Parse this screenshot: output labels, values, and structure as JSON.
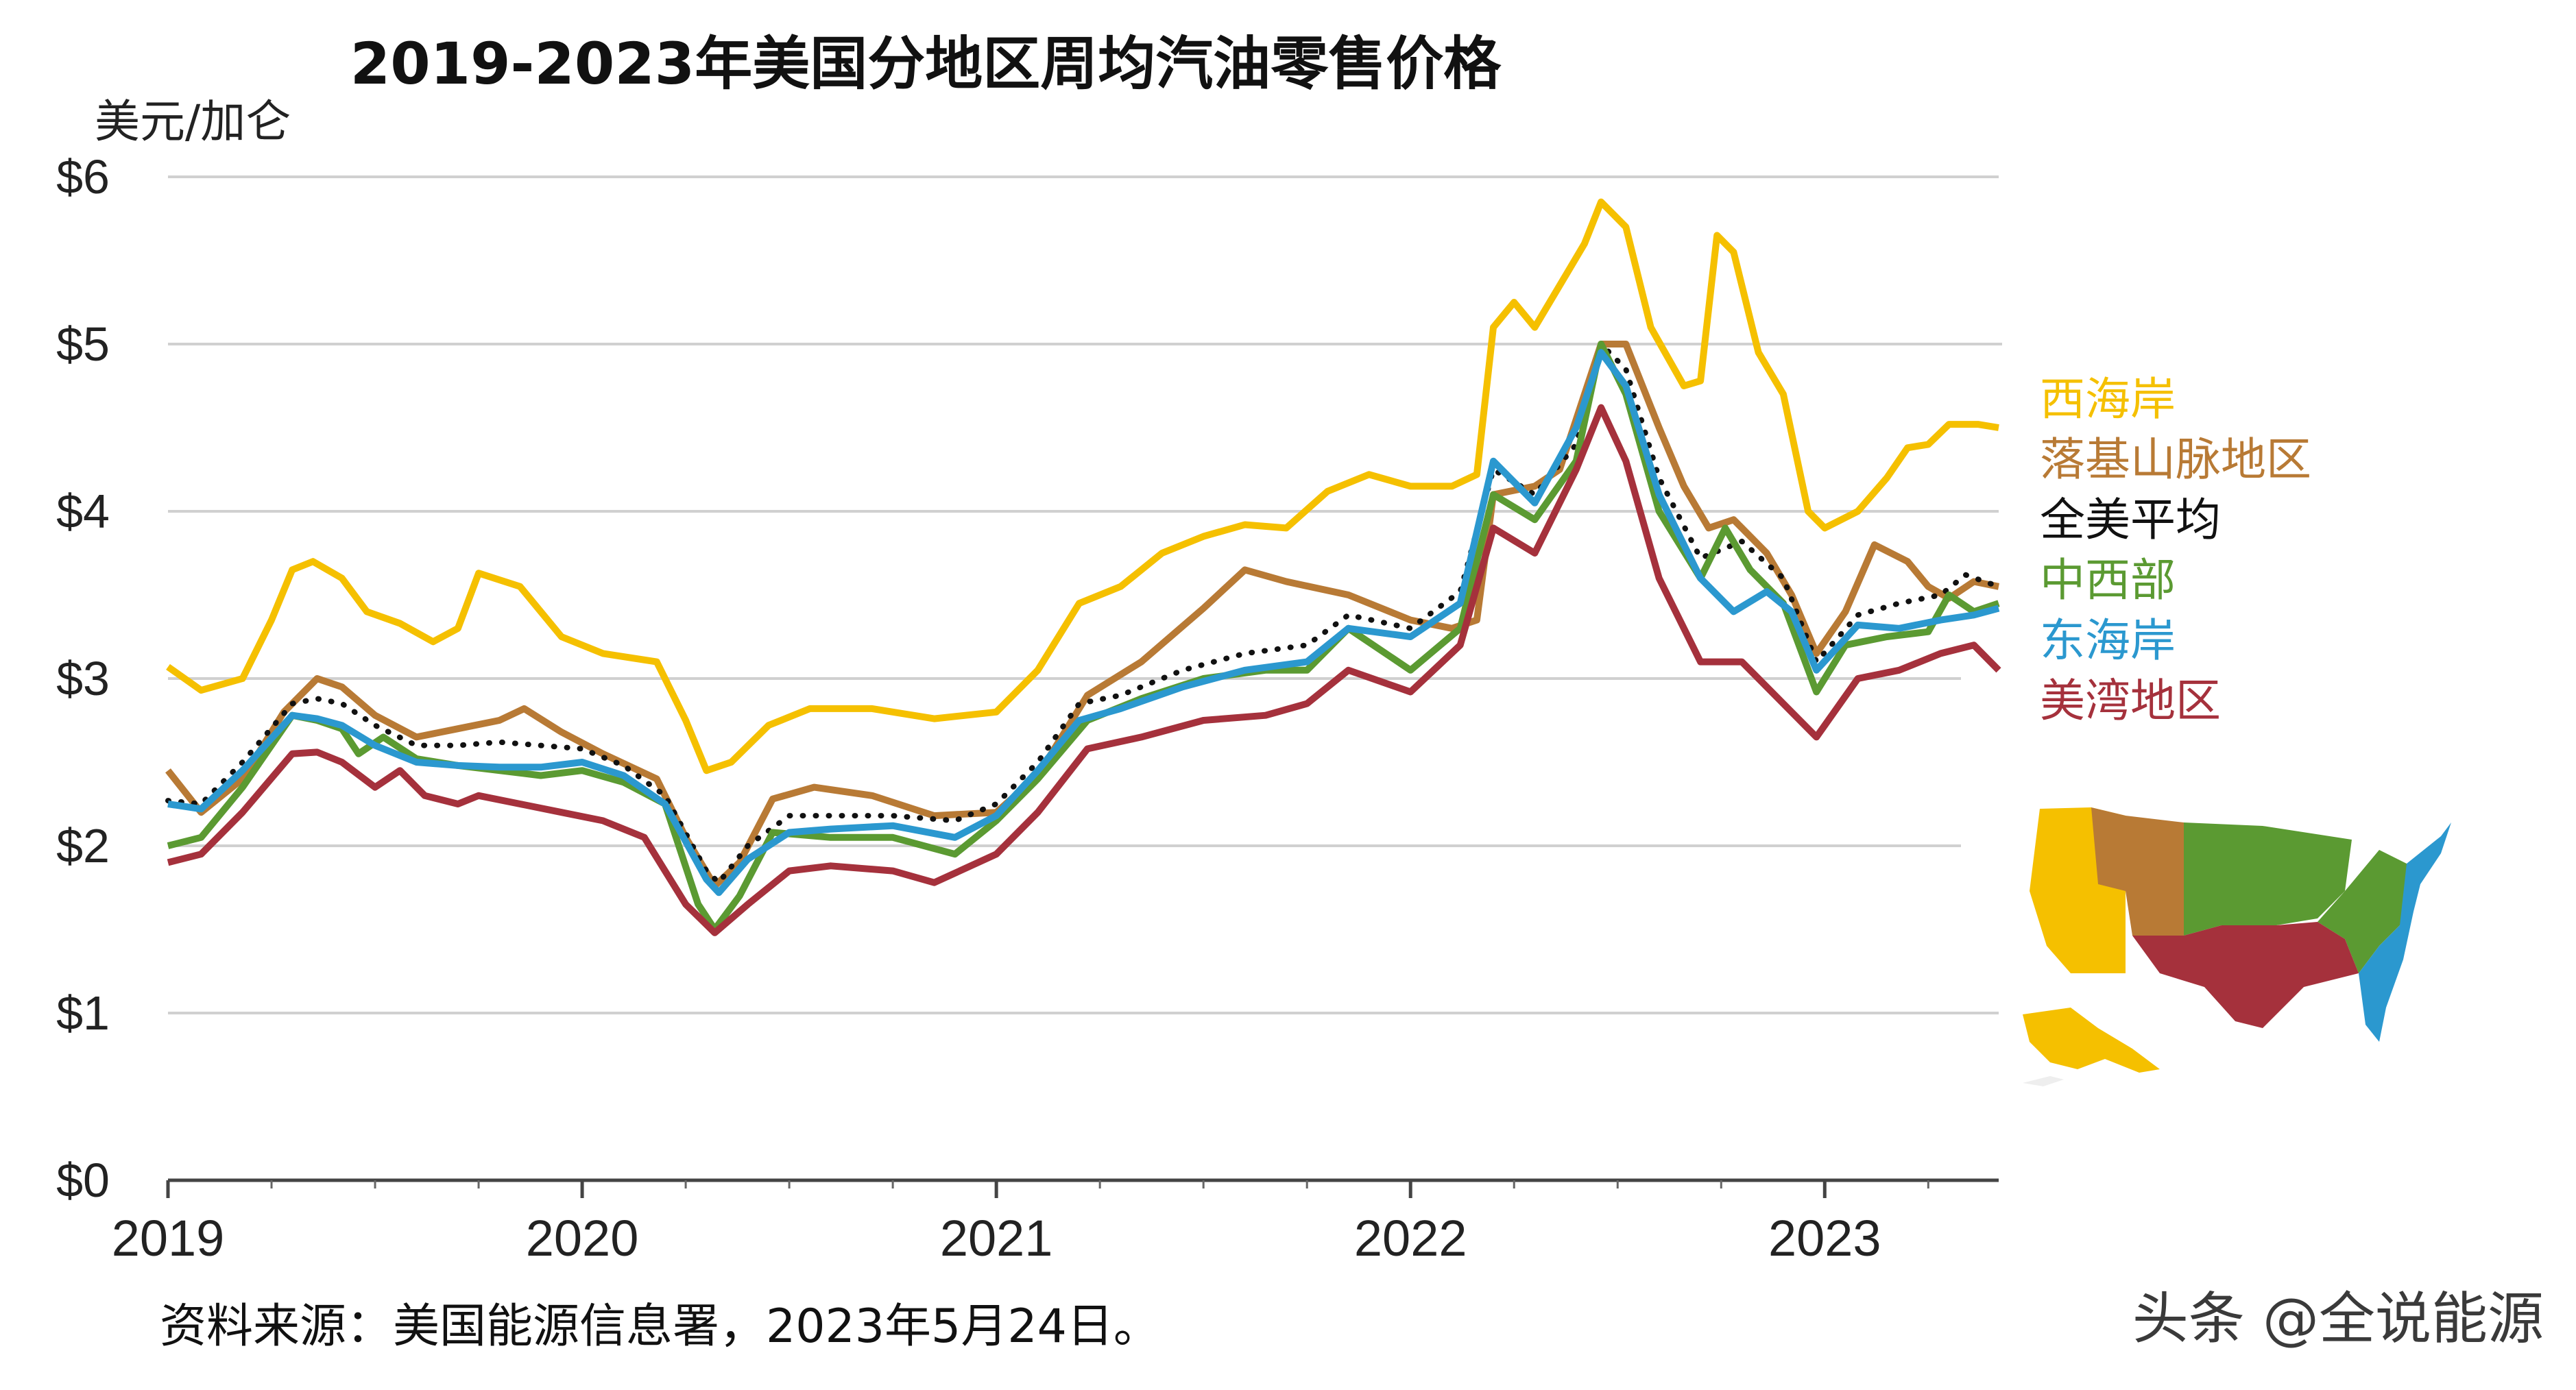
{
  "chart_data": {
    "type": "line",
    "title": "2019-2023年美国分地区周均汽油零售价格",
    "ylabel": "美元/加仑",
    "xlabel": "",
    "ylim": [
      0,
      6
    ],
    "xlim": [
      2019.0,
      2023.42
    ],
    "yticks": [
      "$0",
      "$1",
      "$2",
      "$3",
      "$4",
      "$5",
      "$6"
    ],
    "xticks": [
      "2019",
      "2020",
      "2021",
      "2022",
      "2023"
    ],
    "grid": "horizontal",
    "legend_placement": "right",
    "series": [
      {
        "name": "西海岸",
        "color": "#f5c000",
        "dashed": false,
        "points": [
          [
            2019.0,
            3.07
          ],
          [
            2019.08,
            2.93
          ],
          [
            2019.18,
            3.0
          ],
          [
            2019.25,
            3.35
          ],
          [
            2019.3,
            3.65
          ],
          [
            2019.35,
            3.7
          ],
          [
            2019.42,
            3.6
          ],
          [
            2019.48,
            3.4
          ],
          [
            2019.56,
            3.33
          ],
          [
            2019.64,
            3.22
          ],
          [
            2019.7,
            3.3
          ],
          [
            2019.75,
            3.63
          ],
          [
            2019.85,
            3.55
          ],
          [
            2019.95,
            3.25
          ],
          [
            2020.05,
            3.15
          ],
          [
            2020.18,
            3.1
          ],
          [
            2020.25,
            2.75
          ],
          [
            2020.3,
            2.45
          ],
          [
            2020.36,
            2.5
          ],
          [
            2020.45,
            2.72
          ],
          [
            2020.55,
            2.82
          ],
          [
            2020.7,
            2.82
          ],
          [
            2020.85,
            2.76
          ],
          [
            2021.0,
            2.8
          ],
          [
            2021.1,
            3.05
          ],
          [
            2021.2,
            3.45
          ],
          [
            2021.3,
            3.55
          ],
          [
            2021.4,
            3.75
          ],
          [
            2021.5,
            3.85
          ],
          [
            2021.6,
            3.92
          ],
          [
            2021.7,
            3.9
          ],
          [
            2021.8,
            4.12
          ],
          [
            2021.9,
            4.22
          ],
          [
            2022.0,
            4.15
          ],
          [
            2022.1,
            4.15
          ],
          [
            2022.16,
            4.22
          ],
          [
            2022.2,
            5.1
          ],
          [
            2022.25,
            5.25
          ],
          [
            2022.3,
            5.1
          ],
          [
            2022.36,
            5.35
          ],
          [
            2022.42,
            5.6
          ],
          [
            2022.46,
            5.85
          ],
          [
            2022.52,
            5.7
          ],
          [
            2022.58,
            5.1
          ],
          [
            2022.66,
            4.75
          ],
          [
            2022.7,
            4.78
          ],
          [
            2022.74,
            5.65
          ],
          [
            2022.78,
            5.55
          ],
          [
            2022.84,
            4.95
          ],
          [
            2022.9,
            4.7
          ],
          [
            2022.96,
            4.0
          ],
          [
            2023.0,
            3.9
          ],
          [
            2023.08,
            4.0
          ],
          [
            2023.15,
            4.2
          ],
          [
            2023.2,
            4.38
          ],
          [
            2023.25,
            4.4
          ],
          [
            2023.3,
            4.52
          ],
          [
            2023.37,
            4.52
          ],
          [
            2023.42,
            4.5
          ]
        ]
      },
      {
        "name": "落基山脉地区",
        "color": "#b87a35",
        "dashed": false,
        "points": [
          [
            2019.0,
            2.45
          ],
          [
            2019.08,
            2.2
          ],
          [
            2019.18,
            2.4
          ],
          [
            2019.28,
            2.8
          ],
          [
            2019.36,
            3.0
          ],
          [
            2019.42,
            2.95
          ],
          [
            2019.5,
            2.78
          ],
          [
            2019.6,
            2.65
          ],
          [
            2019.7,
            2.7
          ],
          [
            2019.8,
            2.75
          ],
          [
            2019.86,
            2.82
          ],
          [
            2019.95,
            2.68
          ],
          [
            2020.05,
            2.55
          ],
          [
            2020.18,
            2.4
          ],
          [
            2020.25,
            2.05
          ],
          [
            2020.32,
            1.76
          ],
          [
            2020.38,
            1.9
          ],
          [
            2020.46,
            2.28
          ],
          [
            2020.56,
            2.35
          ],
          [
            2020.7,
            2.3
          ],
          [
            2020.85,
            2.18
          ],
          [
            2021.0,
            2.2
          ],
          [
            2021.1,
            2.42
          ],
          [
            2021.22,
            2.9
          ],
          [
            2021.35,
            3.1
          ],
          [
            2021.5,
            3.42
          ],
          [
            2021.6,
            3.65
          ],
          [
            2021.7,
            3.58
          ],
          [
            2021.85,
            3.5
          ],
          [
            2022.0,
            3.35
          ],
          [
            2022.1,
            3.3
          ],
          [
            2022.16,
            3.35
          ],
          [
            2022.2,
            4.1
          ],
          [
            2022.3,
            4.15
          ],
          [
            2022.36,
            4.25
          ],
          [
            2022.42,
            4.7
          ],
          [
            2022.46,
            5.0
          ],
          [
            2022.52,
            5.0
          ],
          [
            2022.6,
            4.5
          ],
          [
            2022.66,
            4.15
          ],
          [
            2022.72,
            3.9
          ],
          [
            2022.78,
            3.95
          ],
          [
            2022.86,
            3.75
          ],
          [
            2022.92,
            3.5
          ],
          [
            2022.98,
            3.15
          ],
          [
            2023.05,
            3.4
          ],
          [
            2023.12,
            3.8
          ],
          [
            2023.2,
            3.7
          ],
          [
            2023.25,
            3.55
          ],
          [
            2023.3,
            3.48
          ],
          [
            2023.36,
            3.58
          ],
          [
            2023.42,
            3.55
          ]
        ]
      },
      {
        "name": "全美平均",
        "color": "#111111",
        "dashed": true,
        "points": [
          [
            2019.0,
            2.27
          ],
          [
            2019.08,
            2.25
          ],
          [
            2019.18,
            2.5
          ],
          [
            2019.3,
            2.85
          ],
          [
            2019.36,
            2.88
          ],
          [
            2019.42,
            2.85
          ],
          [
            2019.5,
            2.72
          ],
          [
            2019.6,
            2.6
          ],
          [
            2019.7,
            2.6
          ],
          [
            2019.8,
            2.62
          ],
          [
            2019.9,
            2.6
          ],
          [
            2020.0,
            2.58
          ],
          [
            2020.1,
            2.48
          ],
          [
            2020.2,
            2.3
          ],
          [
            2020.3,
            1.85
          ],
          [
            2020.33,
            1.78
          ],
          [
            2020.4,
            2.0
          ],
          [
            2020.5,
            2.18
          ],
          [
            2020.6,
            2.18
          ],
          [
            2020.75,
            2.18
          ],
          [
            2020.9,
            2.15
          ],
          [
            2021.0,
            2.25
          ],
          [
            2021.1,
            2.5
          ],
          [
            2021.2,
            2.85
          ],
          [
            2021.3,
            2.9
          ],
          [
            2021.45,
            3.05
          ],
          [
            2021.6,
            3.15
          ],
          [
            2021.75,
            3.2
          ],
          [
            2021.85,
            3.38
          ],
          [
            2022.0,
            3.3
          ],
          [
            2022.12,
            3.52
          ],
          [
            2022.2,
            4.25
          ],
          [
            2022.3,
            4.1
          ],
          [
            2022.4,
            4.4
          ],
          [
            2022.46,
            5.0
          ],
          [
            2022.52,
            4.85
          ],
          [
            2022.6,
            4.2
          ],
          [
            2022.7,
            3.72
          ],
          [
            2022.8,
            3.82
          ],
          [
            2022.9,
            3.6
          ],
          [
            2022.98,
            3.1
          ],
          [
            2023.08,
            3.38
          ],
          [
            2023.18,
            3.45
          ],
          [
            2023.28,
            3.5
          ],
          [
            2023.34,
            3.62
          ],
          [
            2023.42,
            3.55
          ]
        ]
      },
      {
        "name": "中西部",
        "color": "#5b9a32",
        "dashed": false,
        "points": [
          [
            2019.0,
            2.0
          ],
          [
            2019.08,
            2.05
          ],
          [
            2019.18,
            2.35
          ],
          [
            2019.3,
            2.78
          ],
          [
            2019.36,
            2.75
          ],
          [
            2019.42,
            2.7
          ],
          [
            2019.46,
            2.55
          ],
          [
            2019.52,
            2.65
          ],
          [
            2019.6,
            2.52
          ],
          [
            2019.7,
            2.48
          ],
          [
            2019.8,
            2.45
          ],
          [
            2019.9,
            2.42
          ],
          [
            2020.0,
            2.45
          ],
          [
            2020.1,
            2.38
          ],
          [
            2020.2,
            2.25
          ],
          [
            2020.28,
            1.65
          ],
          [
            2020.32,
            1.5
          ],
          [
            2020.38,
            1.7
          ],
          [
            2020.46,
            2.08
          ],
          [
            2020.6,
            2.05
          ],
          [
            2020.75,
            2.05
          ],
          [
            2020.9,
            1.95
          ],
          [
            2021.0,
            2.15
          ],
          [
            2021.1,
            2.4
          ],
          [
            2021.22,
            2.75
          ],
          [
            2021.35,
            2.88
          ],
          [
            2021.5,
            3.0
          ],
          [
            2021.65,
            3.05
          ],
          [
            2021.75,
            3.05
          ],
          [
            2021.85,
            3.3
          ],
          [
            2022.0,
            3.05
          ],
          [
            2022.12,
            3.3
          ],
          [
            2022.2,
            4.1
          ],
          [
            2022.3,
            3.95
          ],
          [
            2022.4,
            4.3
          ],
          [
            2022.46,
            5.0
          ],
          [
            2022.52,
            4.7
          ],
          [
            2022.6,
            4.0
          ],
          [
            2022.7,
            3.6
          ],
          [
            2022.76,
            3.9
          ],
          [
            2022.82,
            3.65
          ],
          [
            2022.9,
            3.45
          ],
          [
            2022.98,
            2.92
          ],
          [
            2023.05,
            3.2
          ],
          [
            2023.15,
            3.25
          ],
          [
            2023.25,
            3.28
          ],
          [
            2023.3,
            3.5
          ],
          [
            2023.36,
            3.4
          ],
          [
            2023.42,
            3.45
          ]
        ]
      },
      {
        "name": "东海岸",
        "color": "#2b98cf",
        "dashed": false,
        "points": [
          [
            2019.0,
            2.25
          ],
          [
            2019.08,
            2.22
          ],
          [
            2019.18,
            2.45
          ],
          [
            2019.3,
            2.78
          ],
          [
            2019.36,
            2.76
          ],
          [
            2019.42,
            2.72
          ],
          [
            2019.5,
            2.6
          ],
          [
            2019.6,
            2.5
          ],
          [
            2019.7,
            2.48
          ],
          [
            2019.8,
            2.47
          ],
          [
            2019.9,
            2.47
          ],
          [
            2020.0,
            2.5
          ],
          [
            2020.1,
            2.42
          ],
          [
            2020.2,
            2.25
          ],
          [
            2020.3,
            1.8
          ],
          [
            2020.33,
            1.72
          ],
          [
            2020.4,
            1.92
          ],
          [
            2020.5,
            2.08
          ],
          [
            2020.6,
            2.1
          ],
          [
            2020.75,
            2.12
          ],
          [
            2020.9,
            2.05
          ],
          [
            2021.0,
            2.18
          ],
          [
            2021.1,
            2.45
          ],
          [
            2021.2,
            2.75
          ],
          [
            2021.3,
            2.82
          ],
          [
            2021.45,
            2.95
          ],
          [
            2021.6,
            3.05
          ],
          [
            2021.75,
            3.1
          ],
          [
            2021.85,
            3.3
          ],
          [
            2022.0,
            3.25
          ],
          [
            2022.12,
            3.45
          ],
          [
            2022.2,
            4.3
          ],
          [
            2022.3,
            4.05
          ],
          [
            2022.4,
            4.5
          ],
          [
            2022.46,
            4.95
          ],
          [
            2022.52,
            4.75
          ],
          [
            2022.6,
            4.1
          ],
          [
            2022.7,
            3.6
          ],
          [
            2022.78,
            3.4
          ],
          [
            2022.86,
            3.52
          ],
          [
            2022.92,
            3.4
          ],
          [
            2022.98,
            3.05
          ],
          [
            2023.08,
            3.32
          ],
          [
            2023.18,
            3.3
          ],
          [
            2023.28,
            3.35
          ],
          [
            2023.36,
            3.38
          ],
          [
            2023.42,
            3.42
          ]
        ]
      },
      {
        "name": "美湾地区",
        "color": "#a5313c",
        "dashed": false,
        "points": [
          [
            2019.0,
            1.9
          ],
          [
            2019.08,
            1.95
          ],
          [
            2019.18,
            2.2
          ],
          [
            2019.3,
            2.55
          ],
          [
            2019.36,
            2.56
          ],
          [
            2019.42,
            2.5
          ],
          [
            2019.5,
            2.35
          ],
          [
            2019.56,
            2.45
          ],
          [
            2019.62,
            2.3
          ],
          [
            2019.7,
            2.25
          ],
          [
            2019.75,
            2.3
          ],
          [
            2019.85,
            2.25
          ],
          [
            2019.95,
            2.2
          ],
          [
            2020.05,
            2.15
          ],
          [
            2020.15,
            2.05
          ],
          [
            2020.25,
            1.65
          ],
          [
            2020.32,
            1.48
          ],
          [
            2020.4,
            1.65
          ],
          [
            2020.5,
            1.85
          ],
          [
            2020.6,
            1.88
          ],
          [
            2020.75,
            1.85
          ],
          [
            2020.85,
            1.78
          ],
          [
            2021.0,
            1.95
          ],
          [
            2021.1,
            2.2
          ],
          [
            2021.22,
            2.58
          ],
          [
            2021.35,
            2.65
          ],
          [
            2021.5,
            2.75
          ],
          [
            2021.65,
            2.78
          ],
          [
            2021.75,
            2.85
          ],
          [
            2021.85,
            3.05
          ],
          [
            2022.0,
            2.92
          ],
          [
            2022.12,
            3.2
          ],
          [
            2022.2,
            3.9
          ],
          [
            2022.3,
            3.75
          ],
          [
            2022.4,
            4.25
          ],
          [
            2022.46,
            4.62
          ],
          [
            2022.52,
            4.3
          ],
          [
            2022.6,
            3.6
          ],
          [
            2022.7,
            3.1
          ],
          [
            2022.8,
            3.1
          ],
          [
            2022.9,
            2.85
          ],
          [
            2022.98,
            2.65
          ],
          [
            2023.08,
            3.0
          ],
          [
            2023.18,
            3.05
          ],
          [
            2023.28,
            3.15
          ],
          [
            2023.36,
            3.2
          ],
          [
            2023.42,
            3.05
          ]
        ]
      }
    ]
  },
  "source_note": "资料来源：美国能源信息署，2023年5月24日。",
  "watermark": "头条 @全说能源",
  "map_icon": "us-regions-map-icon"
}
